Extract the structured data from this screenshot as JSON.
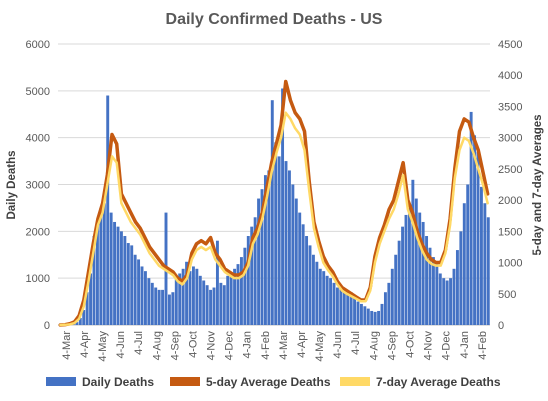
{
  "chart_data": {
    "type": "bar",
    "title": "Daily Confirmed Deaths - US",
    "ylabel": "Daily Deaths",
    "y2label": "5-day and 7-day Averages",
    "ylim": [
      0,
      6000
    ],
    "y2lim": [
      0,
      4500
    ],
    "yticks": [
      "0",
      "1000",
      "2000",
      "3000",
      "4000",
      "5000",
      "6000"
    ],
    "y2ticks": [
      "0",
      "500",
      "1000",
      "1500",
      "2000",
      "2500",
      "3000",
      "3500",
      "4000",
      "4500"
    ],
    "xticks": [
      "4-Mar",
      "4-Apr",
      "4-May",
      "4-Jun",
      "4-Jul",
      "4-Aug",
      "4-Sep",
      "4-Oct",
      "4-Nov",
      "4-Dec",
      "4-Jan",
      "4-Feb",
      "4-Mar",
      "4-Apr",
      "4-May",
      "4-Jun",
      "4-Jul",
      "4-Aug",
      "4-Sep",
      "4-Oct",
      "4-Nov",
      "4-Dec",
      "4-Jan",
      "4-Feb"
    ],
    "grid": true,
    "legend_position": "bottom",
    "colors": {
      "daily": "#4472C4",
      "avg5": "#C55A11",
      "avg7": "#FFD966"
    },
    "legend": [
      "Daily Deaths",
      "5-day Average Deaths",
      "7-day Average Deaths"
    ],
    "series": [
      {
        "name": "Daily Deaths",
        "axis": "left",
        "values": [
          0,
          2,
          5,
          10,
          20,
          60,
          150,
          320,
          700,
          1100,
          1900,
          2200,
          2500,
          2600,
          4900,
          2400,
          2200,
          2100,
          2000,
          1900,
          1750,
          1700,
          1500,
          1400,
          1250,
          1150,
          1000,
          900,
          800,
          750,
          750,
          2400,
          650,
          700,
          1000,
          1100,
          1200,
          1350,
          1150,
          1250,
          1200,
          1050,
          950,
          850,
          750,
          800,
          1800,
          900,
          850,
          1050,
          1100,
          1200,
          1300,
          1450,
          1650,
          1900,
          2100,
          2300,
          2700,
          2900,
          3200,
          3300,
          4800,
          3900,
          3600,
          5050,
          3500,
          3300,
          3000,
          2700,
          2400,
          2150,
          1900,
          1700,
          1500,
          1350,
          1200,
          1150,
          1050,
          1000,
          900,
          800,
          800,
          750,
          700,
          700,
          600,
          500,
          450,
          400,
          350,
          300,
          280,
          300,
          450,
          700,
          900,
          1200,
          1500,
          1800,
          2100,
          2350,
          2500,
          3100,
          2700,
          2400,
          2200,
          1900,
          1650,
          1450,
          1300,
          1100,
          1000,
          950,
          1000,
          1200,
          1600,
          2000,
          2600,
          3000,
          4550,
          4050,
          3700,
          2950,
          2600,
          2300
        ]
      },
      {
        "name": "5-day Average Deaths",
        "axis": "right",
        "values": [
          0,
          5,
          20,
          50,
          150,
          400,
          850,
          1300,
          1700,
          1950,
          2400,
          3050,
          2900,
          2100,
          1950,
          1800,
          1650,
          1550,
          1400,
          1250,
          1150,
          1050,
          950,
          900,
          850,
          750,
          700,
          800,
          1150,
          1300,
          1350,
          1300,
          1400,
          1150,
          1050,
          900,
          850,
          800,
          800,
          850,
          1000,
          1400,
          1550,
          1800,
          2200,
          2600,
          2900,
          3200,
          3900,
          3600,
          3400,
          3300,
          3100,
          2300,
          1650,
          1350,
          1100,
          950,
          850,
          700,
          600,
          550,
          500,
          450,
          400,
          400,
          600,
          1100,
          1400,
          1600,
          1850,
          2000,
          2300,
          2600,
          2000,
          1800,
          1500,
          1300,
          1150,
          1050,
          1000,
          1000,
          1200,
          1700,
          2500,
          3100,
          3300,
          3250,
          3000,
          2800,
          2450,
          2100
        ]
      },
      {
        "name": "7-day Average Deaths",
        "axis": "right",
        "values": [
          0,
          3,
          10,
          30,
          100,
          300,
          700,
          1150,
          1600,
          1800,
          2250,
          2700,
          2600,
          1950,
          1800,
          1650,
          1550,
          1450,
          1300,
          1150,
          1050,
          950,
          900,
          850,
          800,
          700,
          650,
          750,
          1050,
          1200,
          1250,
          1200,
          1250,
          1050,
          950,
          850,
          800,
          750,
          750,
          800,
          950,
          1300,
          1450,
          1700,
          2050,
          2450,
          2750,
          3000,
          3400,
          3300,
          3150,
          3050,
          2800,
          2150,
          1550,
          1250,
          1000,
          880,
          780,
          650,
          550,
          500,
          460,
          420,
          380,
          380,
          550,
          1000,
          1300,
          1500,
          1700,
          1850,
          2100,
          2400,
          1850,
          1650,
          1400,
          1200,
          1050,
          980,
          950,
          950,
          1150,
          1600,
          2350,
          2800,
          3000,
          2950,
          2750,
          2500,
          2250,
          1950
        ]
      }
    ]
  }
}
